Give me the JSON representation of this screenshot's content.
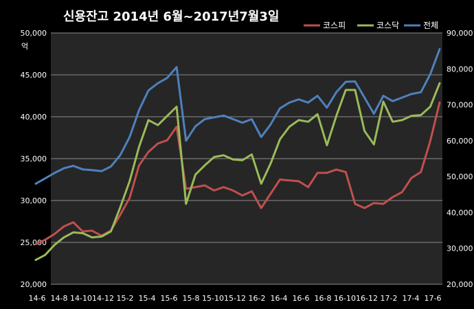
{
  "chart_data": {
    "type": "line",
    "title": "신용잔고 2014년 6월~2017년7월3일",
    "unit_label": "억",
    "left_axis": {
      "ylim": [
        20000,
        50000
      ],
      "ticks": [
        "20,000",
        "25,000",
        "30,000",
        "35,000",
        "40,000",
        "45,000",
        "50,000"
      ]
    },
    "right_axis": {
      "ylim": [
        20000,
        90000
      ],
      "ticks": [
        "20,000",
        "30,000",
        "40,000",
        "50,000",
        "60,000",
        "70,000",
        "80,000",
        "90,000"
      ]
    },
    "x_tick_labels": [
      "14-6",
      "14-8",
      "14-10",
      "14-12",
      "15-2",
      "15-4",
      "15-6",
      "15-8",
      "15-10",
      "15-12",
      "16-2",
      "16-4",
      "16-6",
      "16-8",
      "16-10",
      "16-12",
      "17-2",
      "17-4",
      "17-6"
    ],
    "grid": true,
    "legend_position": "top-right",
    "series": [
      {
        "name": "코스피",
        "axis": "left",
        "color": "#c0504d",
        "values": [
          24800,
          25300,
          26000,
          26900,
          27400,
          26300,
          26400,
          25800,
          26400,
          28300,
          30300,
          34200,
          35800,
          36800,
          37200,
          38800,
          31400,
          31600,
          31800,
          31200,
          31600,
          31200,
          30600,
          31100,
          29100,
          30800,
          32500,
          32400,
          32300,
          31600,
          33300,
          33300,
          33700,
          33400,
          29600,
          29100,
          29700,
          29600,
          30400,
          31000,
          32700,
          33400,
          37100,
          41700
        ]
      },
      {
        "name": "코스닥",
        "axis": "left",
        "color": "#9bbb59",
        "values": [
          22900,
          23500,
          24700,
          25600,
          26200,
          26100,
          25600,
          25700,
          26300,
          29200,
          32300,
          36400,
          39600,
          39000,
          40100,
          41200,
          29600,
          33100,
          34200,
          35200,
          35400,
          34900,
          34800,
          35500,
          32000,
          34400,
          37300,
          38800,
          39600,
          39400,
          40300,
          36600,
          40100,
          43200,
          43200,
          38300,
          36700,
          41800,
          39400,
          39600,
          40100,
          40200,
          41200,
          44000
        ]
      },
      {
        "name": "전체",
        "axis": "right",
        "color": "#4f81bd",
        "values": [
          48000,
          49500,
          51000,
          52300,
          53000,
          52000,
          51800,
          51500,
          52800,
          56000,
          61000,
          68500,
          74000,
          76000,
          77500,
          80500,
          60000,
          64000,
          66000,
          66500,
          67000,
          66000,
          65000,
          66000,
          61000,
          64500,
          69000,
          70600,
          71500,
          70600,
          72500,
          69200,
          73500,
          76400,
          76500,
          72000,
          67500,
          72500,
          71000,
          72000,
          73000,
          73500,
          78500,
          85500
        ]
      }
    ]
  }
}
